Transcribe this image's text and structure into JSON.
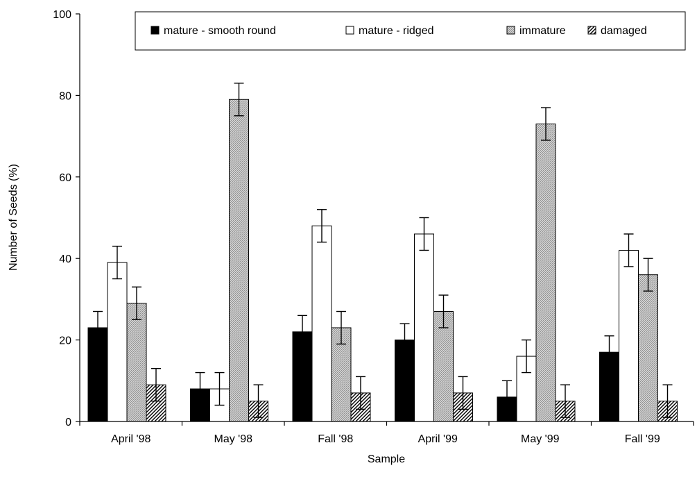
{
  "chart_data": {
    "type": "bar",
    "categories": [
      "April '98",
      "May '98",
      "Fall '98",
      "April '99",
      "May '99",
      "Fall '99"
    ],
    "series": [
      {
        "name": "mature - smooth round",
        "values": [
          23,
          8,
          22,
          20,
          6,
          17
        ],
        "errors": [
          4,
          4,
          4,
          4,
          4,
          4
        ],
        "fill": "solid-black",
        "color": "#000000"
      },
      {
        "name": "mature - ridged",
        "values": [
          39,
          8,
          48,
          46,
          16,
          42
        ],
        "errors": [
          4,
          4,
          4,
          4,
          4,
          4
        ],
        "fill": "white",
        "color": "#ffffff"
      },
      {
        "name": "immature",
        "values": [
          29,
          79,
          23,
          27,
          73,
          36
        ],
        "errors": [
          4,
          4,
          4,
          4,
          4,
          4
        ],
        "fill": "grey-texture",
        "color": "#bdbdbd"
      },
      {
        "name": "damaged",
        "values": [
          9,
          5,
          7,
          7,
          5,
          5
        ],
        "errors": [
          4,
          4,
          4,
          4,
          4,
          4
        ],
        "fill": "diagonal-hatch",
        "color": "#9a9a9a"
      }
    ],
    "yticks": [
      0,
      20,
      40,
      60,
      80,
      100
    ],
    "ylim": [
      0,
      100
    ],
    "xlabel": "Sample",
    "ylabel": "Number of Seeds (%)",
    "title": "",
    "grid": false,
    "legend_position": "top"
  }
}
